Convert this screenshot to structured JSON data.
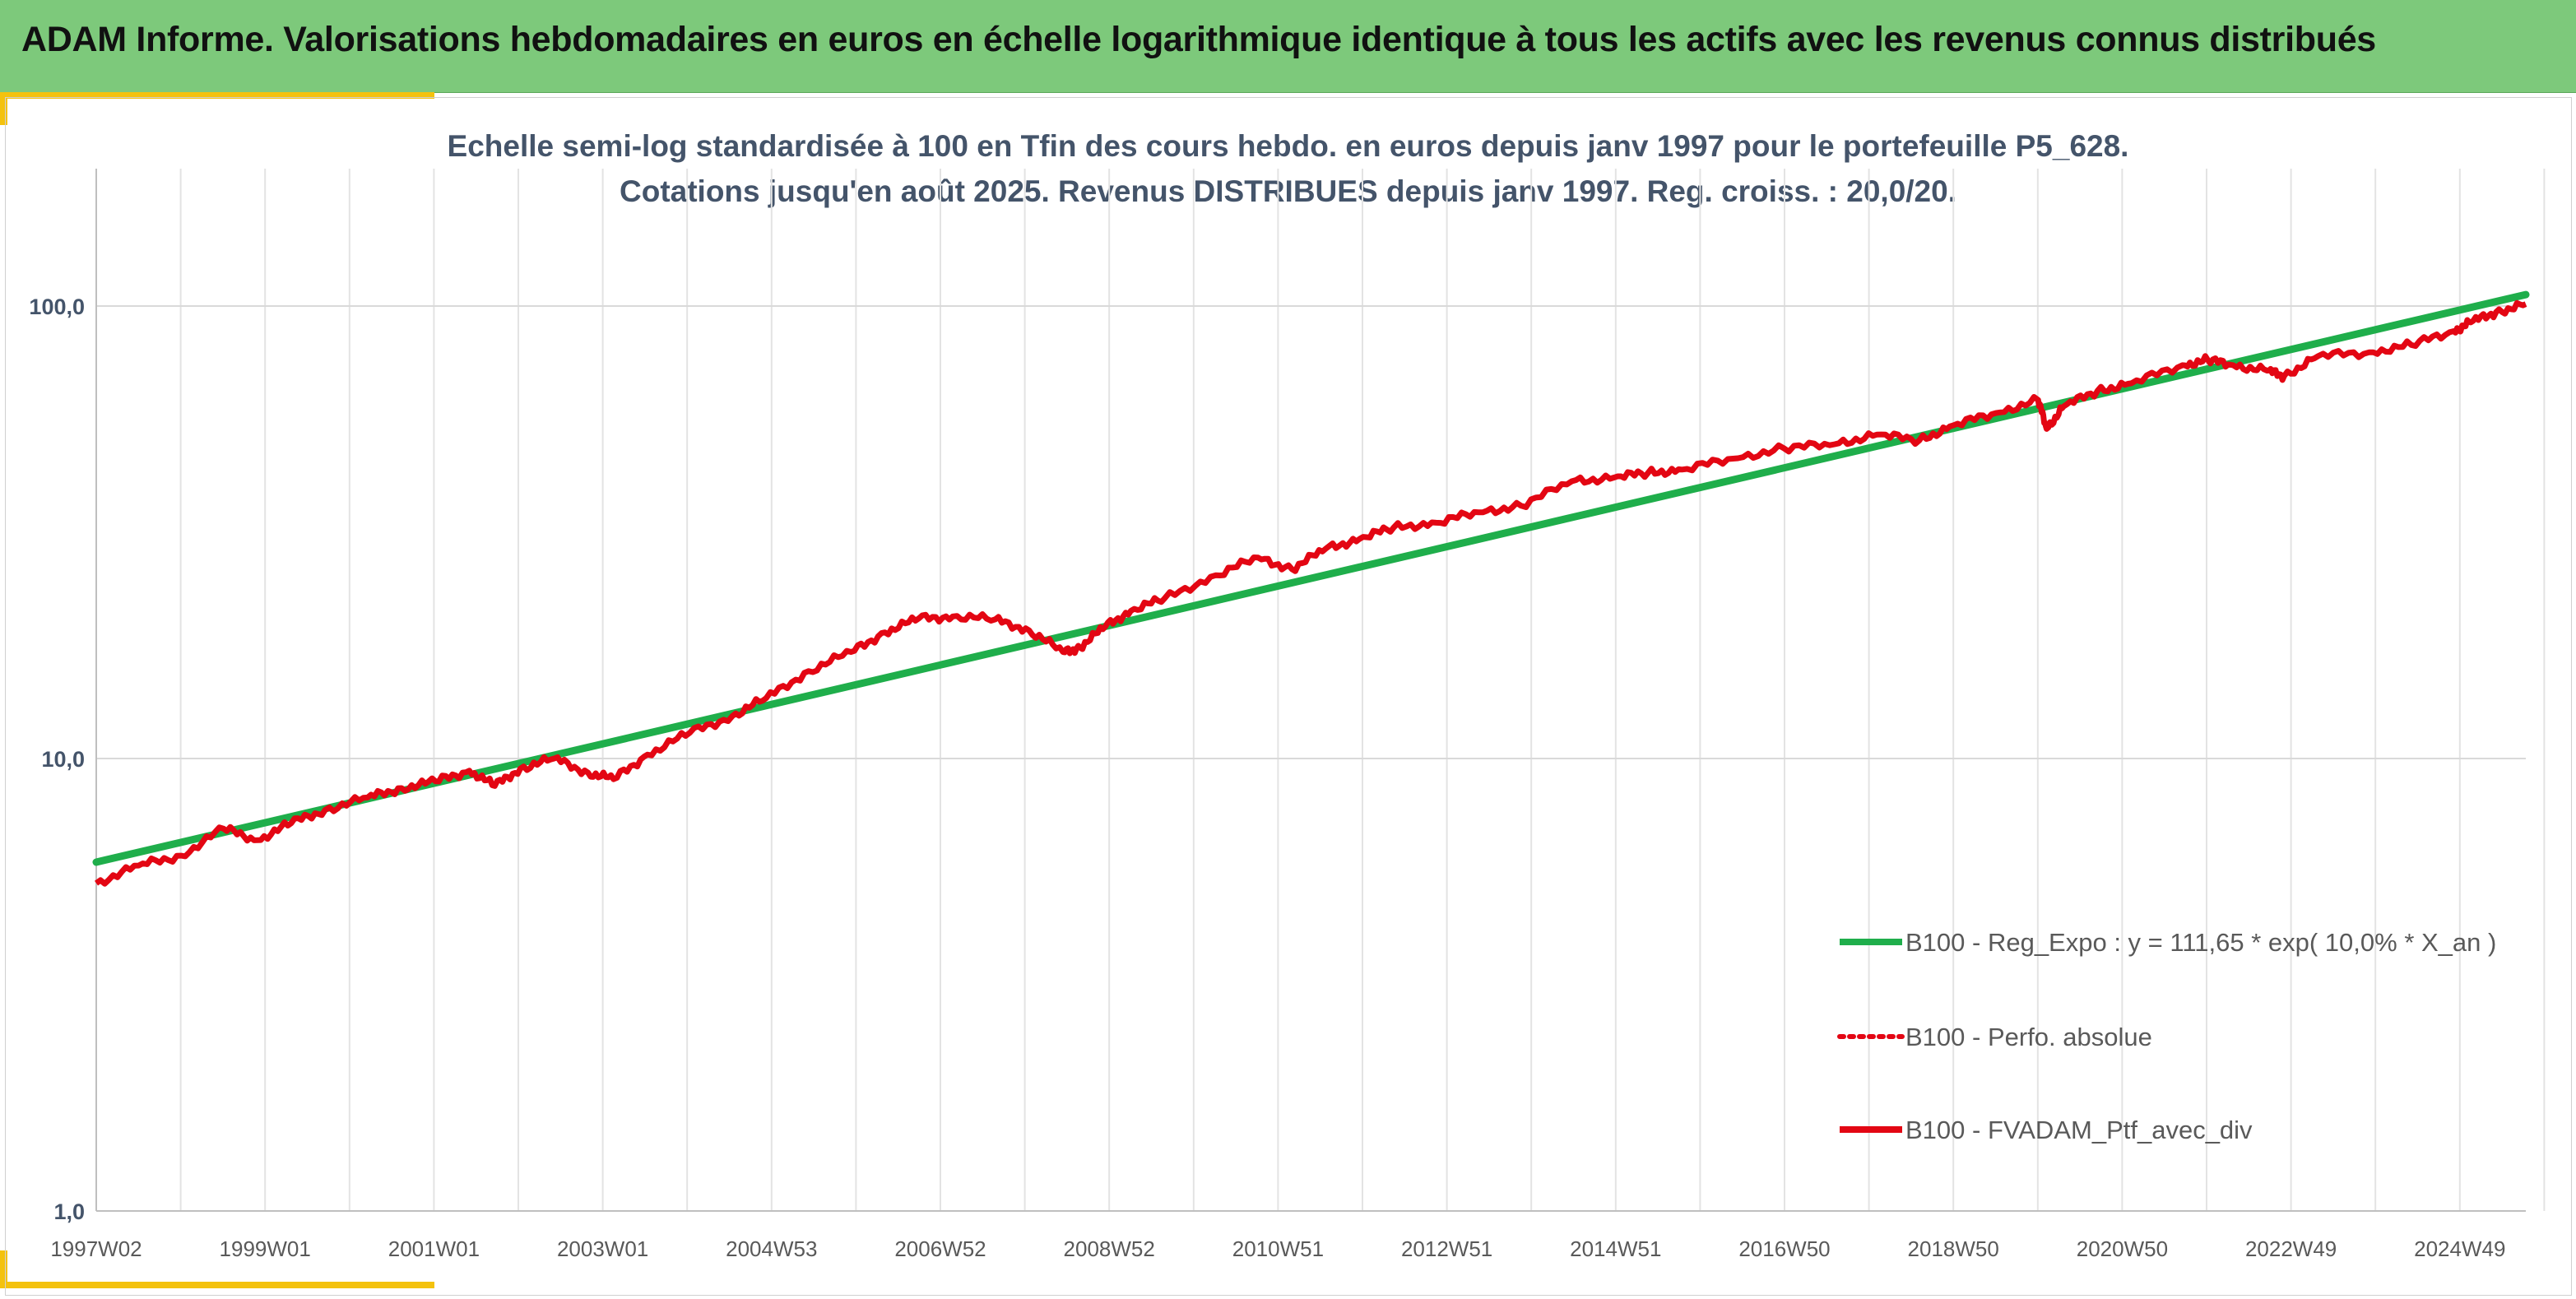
{
  "header": {
    "title": "ADAM Informe. Valorisations hebdomadaires en euros en échelle logarithmique identique à tous les actifs avec les revenus connus distribués"
  },
  "colors": {
    "banner": "#7dc97b",
    "accent": "#f4c20d",
    "regression": "#1fae4b",
    "portfolio": "#e30613"
  },
  "chart_data": {
    "type": "line",
    "title_line1": "Echelle semi-log standardisée à 100 en Tfin des cours hebdo. en euros depuis janv 1997 pour le portefeuille P5_628.",
    "title_line2": "Cotations jusqu'en août 2025. Revenus DISTRIBUES depuis janv 1997. Reg. croiss. : 20,0/20.",
    "y_scale": "log",
    "ylim": [
      1,
      200
    ],
    "grid": true,
    "legend_position": "right",
    "x_tick_labels": [
      "1997W02",
      "1999W01",
      "2001W01",
      "2003W01",
      "2004W53",
      "2006W52",
      "2008W52",
      "2010W51",
      "2012W51",
      "2014W51",
      "2016W50",
      "2018W50",
      "2020W50",
      "2022W49",
      "2024W49"
    ],
    "y_tick_labels": [
      "1,0",
      "10,0",
      "100,0"
    ],
    "y_tick_values": [
      1,
      10,
      100
    ],
    "xlim": [
      1997.0,
      2025.65
    ],
    "series": [
      {
        "name": "B100 - Reg_Expo : y = 111,65 * exp( 10,0% *  X_an )",
        "style": "solid",
        "color": "#1fae4b",
        "x": [
          1997.0,
          2025.65
        ],
        "y": [
          5.9,
          106.0
        ]
      },
      {
        "name": "B100 - Perfo. absolue",
        "style": "dotted",
        "color": "#e30613",
        "x": [],
        "y": []
      },
      {
        "name": "B100 - FVADAM_Ptf_avec_div",
        "style": "solid",
        "color": "#e30613",
        "x": [
          1997.0,
          1997.5,
          1998.0,
          1998.5,
          1998.9,
          1999.3,
          1999.7,
          2000.2,
          2000.6,
          2001.0,
          2001.4,
          2001.7,
          2002.0,
          2002.4,
          2002.8,
          2003.1,
          2003.5,
          2004.0,
          2004.5,
          2004.9,
          2005.4,
          2005.9,
          2006.3,
          2006.7,
          2007.1,
          2007.6,
          2008.0,
          2008.4,
          2008.6,
          2008.9,
          2009.2,
          2009.6,
          2010.2,
          2010.7,
          2011.1,
          2011.5,
          2011.9,
          2012.3,
          2012.8,
          2013.3,
          2013.8,
          2014.4,
          2014.9,
          2015.3,
          2015.7,
          2016.3,
          2016.9,
          2017.5,
          2018.0,
          2018.5,
          2018.9,
          2019.4,
          2019.9,
          2020.0,
          2020.2,
          2020.6,
          2021.0,
          2021.6,
          2021.9,
          2022.2,
          2022.6,
          2022.8,
          2023.2,
          2023.8,
          2024.3,
          2024.8,
          2025.0,
          2025.3,
          2025.65
        ],
        "y": [
          5.3,
          5.8,
          6.1,
          7.0,
          6.6,
          7.2,
          7.7,
          8.2,
          8.6,
          8.9,
          9.4,
          8.7,
          9.5,
          10.0,
          9.3,
          9.0,
          10.2,
          11.4,
          12.4,
          13.6,
          15.6,
          17.2,
          19.0,
          20.4,
          20.6,
          20.3,
          19.2,
          17.2,
          17.6,
          19.6,
          21.2,
          22.6,
          25.4,
          27.8,
          26.2,
          29.1,
          30.6,
          32.4,
          33.2,
          35.0,
          36.2,
          41.0,
          41.8,
          42.8,
          43.5,
          46.0,
          48.5,
          49.5,
          52.0,
          50.5,
          54.5,
          58.0,
          62.0,
          53.5,
          60.0,
          65.0,
          67.5,
          74.0,
          76.0,
          74.0,
          72.0,
          70.0,
          77.5,
          79.0,
          82.0,
          88.0,
          92.0,
          97.0,
          101.0
        ]
      }
    ]
  }
}
